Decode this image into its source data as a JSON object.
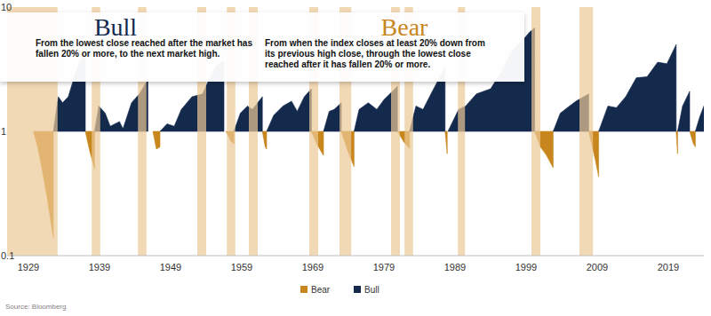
{
  "chart_data": {
    "type": "area",
    "log": "y",
    "legend": "bottom",
    "xlim": [
      1926,
      2024
    ],
    "ylim": [
      0.1,
      10
    ],
    "xticks": [
      1929,
      1939,
      1949,
      1959,
      1969,
      1979,
      1989,
      1999,
      2009,
      2019
    ],
    "yticks": [
      0.1,
      1,
      10
    ],
    "annotations": [
      {
        "title": "Bull",
        "lines": [
          "From the lowest close reached after the market has",
          "fallen 20% or more, to the next market high."
        ]
      },
      {
        "title": "Bear",
        "lines": [
          "From when the index closes at least 20% down from",
          "its previous high close, through the lowest close",
          "reached after it has fallen 20% or more."
        ]
      }
    ],
    "source": "Source: Bloomberg",
    "shaded_periods": [
      {
        "start": 1926,
        "end": 1933.1
      },
      {
        "start": 1937.9,
        "end": 1939.1
      },
      {
        "start": 1944.4,
        "end": 1945.6
      },
      {
        "start": 1952.75,
        "end": 1954
      },
      {
        "start": 1956.9,
        "end": 1958.1
      },
      {
        "start": 1960,
        "end": 1961.25
      },
      {
        "start": 1968.5,
        "end": 1969.75
      },
      {
        "start": 1972.75,
        "end": 1974.4
      },
      {
        "start": 1980,
        "end": 1981.25
      },
      {
        "start": 1981.9,
        "end": 1983.1
      },
      {
        "start": 1989.4,
        "end": 1990.4
      },
      {
        "start": 1999.75,
        "end": 2001
      },
      {
        "start": 2006.5,
        "end": 2008.4
      }
    ],
    "series": [
      {
        "name": "Bear",
        "color": "#c8861e",
        "x": [
          1929.7,
          1930.3,
          1930.9,
          1931.6,
          1932.2,
          1932.5,
          null,
          1937,
          1937.6,
          1938.3,
          null,
          1946.5,
          1947,
          1947.5,
          null,
          1956.8,
          1957.4,
          1957.9,
          null,
          1961.9,
          1962.3,
          1962.5,
          null,
          1968.8,
          1969.6,
          1970.5,
          null,
          1973,
          1973.9,
          1974.8,
          null,
          1980.9,
          1981.8,
          1982.6,
          null,
          1987.6,
          1987.9,
          null,
          2000.2,
          2001,
          2001.8,
          2002.8,
          null,
          2007.8,
          2008.7,
          2009.2,
          null,
          2020.1,
          2020.3,
          null,
          2022,
          2022.5,
          2022.8
        ],
        "values": [
          1,
          0.75,
          0.5,
          0.3,
          0.18,
          0.14,
          null,
          1,
          0.7,
          0.5,
          null,
          1,
          0.72,
          0.75,
          null,
          1,
          0.85,
          0.79,
          null,
          1,
          0.75,
          0.72,
          null,
          1,
          0.78,
          0.64,
          null,
          1,
          0.7,
          0.52,
          null,
          1,
          0.82,
          0.73,
          null,
          1,
          0.66,
          null,
          1,
          0.75,
          0.65,
          0.51,
          null,
          1,
          0.6,
          0.43,
          null,
          1,
          0.66,
          null,
          1,
          0.8,
          0.75
        ]
      },
      {
        "name": "Bull",
        "color": "#142a4d",
        "x": [
          1932.5,
          1933.2,
          1933.8,
          1934.6,
          1935.5,
          1936.3,
          1937,
          null,
          1938.3,
          1938.9,
          1939.8,
          1940.5,
          1941.8,
          1942.3,
          1943.5,
          1944.6,
          1945.8,
          null,
          1947.5,
          1948.5,
          1949.5,
          1950.5,
          1952,
          1953.5,
          1954.5,
          1955.5,
          1956.5,
          null,
          1957.9,
          1958.8,
          1959.8,
          1960.5,
          1961.9,
          null,
          1962.5,
          1963.5,
          1964.8,
          1966,
          1966.8,
          1967.8,
          1968.8,
          null,
          1970.5,
          1971.3,
          1972,
          1973,
          null,
          1974.8,
          1975.5,
          1976.8,
          1978,
          1979,
          1980.9,
          null,
          1982.6,
          1983.5,
          1984.5,
          1985.8,
          1987.6,
          null,
          1988,
          1989.5,
          1990.5,
          1992,
          1994,
          1995.5,
          1997,
          1998.5,
          1999.5,
          2000.2,
          null,
          2002.8,
          2003.8,
          2004.8,
          2006,
          2007.8,
          null,
          2009.2,
          2010.5,
          2011.7,
          2013,
          2014.5,
          2016,
          2017.5,
          2018.8,
          2020.1,
          null,
          2020.3,
          2021,
          2022,
          null,
          2022.8,
          2023.4,
          2024
        ],
        "values": [
          1,
          1.9,
          1.7,
          1.9,
          2.8,
          3.8,
          4.2,
          null,
          1,
          1.6,
          1.4,
          1.1,
          1.2,
          1.05,
          1.7,
          2.0,
          2.6,
          null,
          1,
          1.15,
          1.1,
          1.5,
          1.9,
          2.0,
          2.7,
          3.4,
          3.7,
          null,
          1,
          1.4,
          1.6,
          1.5,
          1.9,
          null,
          1,
          1.35,
          1.6,
          1.75,
          1.45,
          1.9,
          2.2,
          null,
          1,
          1.45,
          1.5,
          1.7,
          null,
          1,
          1.5,
          1.7,
          1.5,
          1.8,
          2.3,
          null,
          1,
          1.6,
          1.5,
          2.1,
          3.3,
          null,
          1,
          1.5,
          1.6,
          2.0,
          2.2,
          3.0,
          4.4,
          5.4,
          6.3,
          6.8,
          null,
          1,
          1.4,
          1.55,
          1.75,
          2.0,
          null,
          1,
          1.6,
          1.55,
          1.9,
          2.7,
          2.75,
          3.6,
          3.5,
          5.0,
          null,
          1,
          1.6,
          2.1,
          null,
          1,
          1.3,
          1.6
        ]
      }
    ]
  }
}
